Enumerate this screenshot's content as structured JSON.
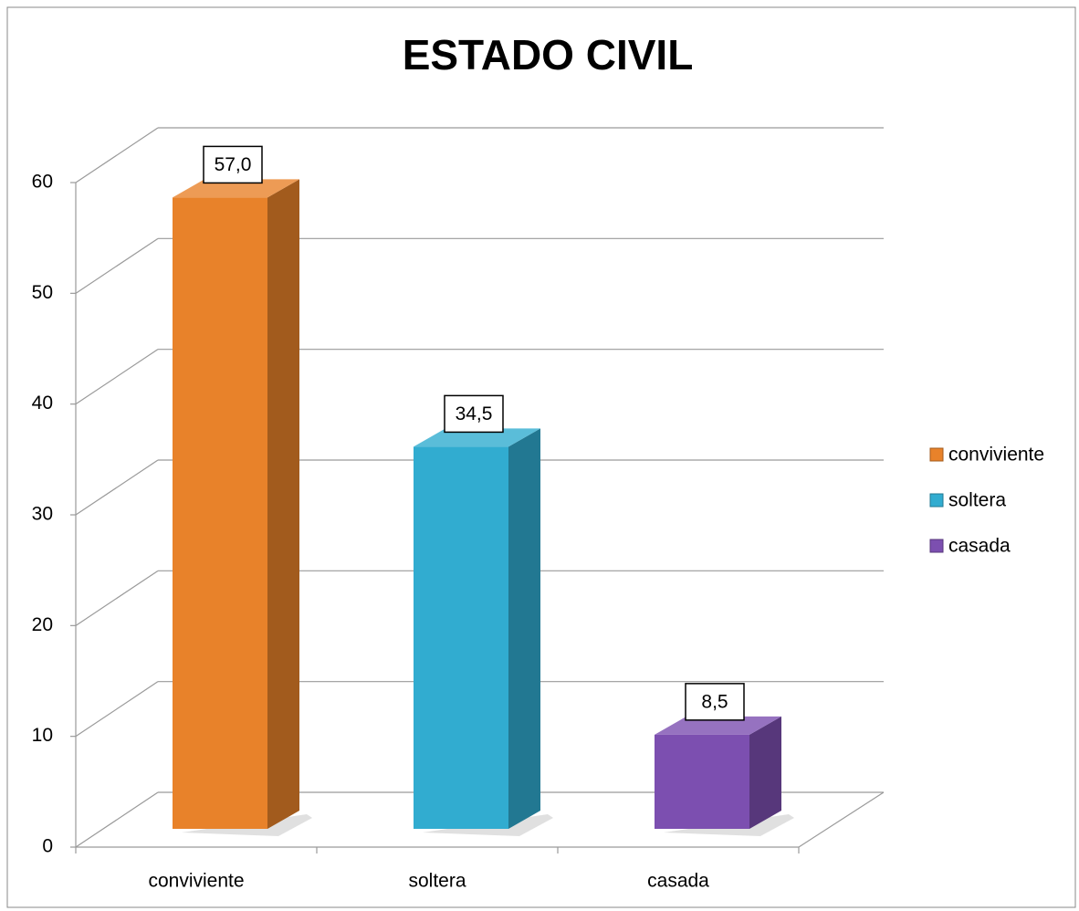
{
  "chart_data": {
    "type": "bar3d",
    "title": "ESTADO CIVIL",
    "categories": [
      "conviviente",
      "soltera",
      "casada"
    ],
    "series": [
      {
        "name": "conviviente",
        "color": "#e8822a",
        "values": [
          57.0,
          null,
          null
        ],
        "value_labels": [
          "57,0",
          null,
          null
        ]
      },
      {
        "name": "soltera",
        "color": "#31acd0",
        "values": [
          null,
          34.5,
          null
        ],
        "value_labels": [
          null,
          "34,5",
          null
        ]
      },
      {
        "name": "casada",
        "color": "#7c4fb0",
        "values": [
          null,
          null,
          8.5
        ],
        "value_labels": [
          null,
          null,
          "8,5"
        ]
      }
    ],
    "ylim": [
      0,
      60
    ],
    "yticks": [
      0,
      10,
      20,
      30,
      40,
      50,
      60
    ],
    "grid": true,
    "legend": "right"
  }
}
